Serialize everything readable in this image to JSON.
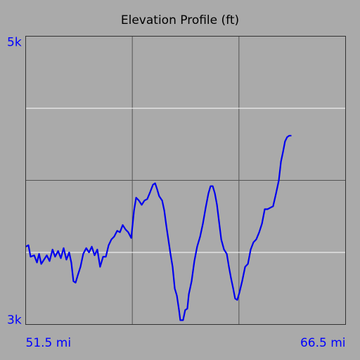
{
  "chart_data": {
    "type": "line",
    "title": "Elevation Profile (ft)",
    "xlim": [
      51.5,
      66.5
    ],
    "ylim": [
      3000,
      5000
    ],
    "xticks": [
      {
        "value": 51.5,
        "label": "51.5 mi"
      },
      {
        "value": 66.5,
        "label": "66.5 mi"
      }
    ],
    "yticks": [
      {
        "value": 3000,
        "label": "3k"
      },
      {
        "value": 5000,
        "label": "5k"
      }
    ],
    "xgrid": [
      56.5,
      61.5
    ],
    "xgrid_color": "#555555",
    "ygrid": [
      3500,
      4000,
      4500
    ],
    "ygrid_colors": [
      "#ffffff",
      "#555555",
      "#ffffff"
    ],
    "label_color": "#0000ff",
    "series": [
      {
        "color": "#0000ee",
        "x": [
          51.5,
          51.63,
          51.73,
          51.9,
          52.03,
          52.13,
          52.23,
          52.36,
          52.49,
          52.62,
          52.76,
          52.88,
          53.02,
          53.15,
          53.28,
          53.41,
          53.54,
          53.64,
          53.74,
          53.84,
          53.94,
          54.07,
          54.2,
          54.34,
          54.47,
          54.6,
          54.73,
          54.86,
          54.99,
          55.13,
          55.26,
          55.39,
          55.52,
          55.65,
          55.79,
          55.92,
          56.05,
          56.18,
          56.31,
          56.45,
          56.58,
          56.68,
          56.81,
          56.94,
          57.07,
          57.2,
          57.34,
          57.47,
          57.57,
          57.66,
          57.76,
          57.9,
          58.0,
          58.09,
          58.19,
          58.29,
          58.39,
          58.49,
          58.59,
          58.69,
          58.75,
          58.88,
          58.98,
          59.08,
          59.15,
          59.28,
          59.41,
          59.54,
          59.68,
          59.81,
          59.94,
          60.07,
          60.17,
          60.27,
          60.37,
          60.47,
          60.57,
          60.67,
          60.8,
          60.93,
          61.03,
          61.13,
          61.23,
          61.32,
          61.42,
          61.52,
          61.65,
          61.79,
          61.92,
          62.05,
          62.18,
          62.31,
          62.45,
          62.58,
          62.71,
          62.84,
          62.97,
          63.1,
          63.24,
          63.37,
          63.47,
          63.57,
          63.66,
          63.76,
          63.86,
          63.96
        ],
        "values": [
          3540,
          3550,
          3470,
          3480,
          3430,
          3490,
          3420,
          3450,
          3480,
          3440,
          3520,
          3470,
          3510,
          3460,
          3530,
          3450,
          3500,
          3430,
          3300,
          3290,
          3340,
          3400,
          3490,
          3530,
          3500,
          3540,
          3480,
          3520,
          3400,
          3470,
          3470,
          3550,
          3590,
          3610,
          3650,
          3640,
          3690,
          3660,
          3640,
          3600,
          3790,
          3880,
          3860,
          3830,
          3860,
          3870,
          3920,
          3970,
          3980,
          3940,
          3890,
          3860,
          3790,
          3690,
          3590,
          3490,
          3400,
          3250,
          3200,
          3100,
          3030,
          3030,
          3100,
          3110,
          3210,
          3300,
          3440,
          3540,
          3610,
          3700,
          3810,
          3910,
          3960,
          3960,
          3910,
          3830,
          3710,
          3590,
          3520,
          3490,
          3400,
          3320,
          3250,
          3180,
          3170,
          3220,
          3300,
          3400,
          3420,
          3520,
          3570,
          3590,
          3640,
          3700,
          3800,
          3800,
          3810,
          3820,
          3910,
          4000,
          4130,
          4200,
          4270,
          4300,
          4310,
          4310
        ]
      }
    ]
  }
}
